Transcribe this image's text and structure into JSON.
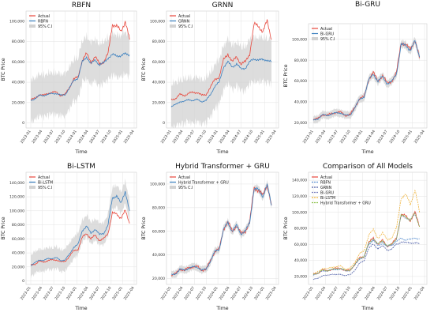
{
  "chart_data": [
    {
      "type": "line",
      "title": "RBFN",
      "xlabel": "Time",
      "ylabel": "BTC Price",
      "x_ticks": [
        "2023-01",
        "2023-04",
        "2023-07",
        "2023-10",
        "2024-01",
        "2024-04",
        "2024-07",
        "2024-10",
        "2025-01",
        "2025-04"
      ],
      "y_ticks": [
        0,
        20000,
        40000,
        60000,
        80000,
        100000
      ],
      "y_tick_labels": [
        "0",
        "20,000",
        "40,000",
        "60,000",
        "80,000",
        "100,000"
      ],
      "ylim": [
        -5000,
        110000
      ],
      "grid": true,
      "legend": "top-left",
      "legend_entries": [
        "Actual",
        "RBFN",
        "95% C.I"
      ],
      "series": [
        {
          "name": "Actual",
          "values": [
            23000,
            24000,
            28000,
            27000,
            29000,
            30000,
            30000,
            27000,
            28000,
            35000,
            43000,
            45000,
            62000,
            68000,
            60000,
            65000,
            58000,
            60000,
            68000,
            97000,
            95000,
            90000,
            100000,
            82000
          ]
        },
        {
          "name": "RBFN",
          "values": [
            22000,
            24000,
            27000,
            27000,
            28000,
            29000,
            29000,
            27000,
            28000,
            34000,
            42000,
            44000,
            60000,
            65000,
            58000,
            62000,
            57000,
            59000,
            64000,
            67000,
            66000,
            66000,
            68000,
            67000
          ]
        }
      ],
      "ci_halfwidth": 17000
    },
    {
      "type": "line",
      "title": "GRNN",
      "xlabel": "Time",
      "ylabel": "BTC Price",
      "x_ticks": [
        "2023-01",
        "2023-04",
        "2023-07",
        "2023-10",
        "2024-01",
        "2024-04",
        "2024-07",
        "2024-10",
        "2025-01",
        "2025-04"
      ],
      "y_ticks": [
        0,
        20000,
        40000,
        60000,
        80000,
        100000
      ],
      "y_tick_labels": [
        "0",
        "20,000",
        "40,000",
        "60,000",
        "80,000",
        "100,000"
      ],
      "ylim": [
        -5000,
        110000
      ],
      "grid": true,
      "legend": "top-left",
      "legend_entries": [
        "Actual",
        "GRNN",
        "95% C.I"
      ],
      "series": [
        {
          "name": "Actual",
          "values": [
            23000,
            24000,
            28000,
            27000,
            29000,
            30000,
            30000,
            27000,
            28000,
            35000,
            43000,
            45000,
            62000,
            68000,
            60000,
            65000,
            58000,
            60000,
            68000,
            97000,
            95000,
            90000,
            100000,
            82000
          ]
        },
        {
          "name": "GRNN",
          "values": [
            16000,
            18000,
            21000,
            21000,
            23000,
            22000,
            23000,
            21000,
            22000,
            28000,
            36000,
            40000,
            55000,
            60000,
            55000,
            58000,
            53000,
            54000,
            60000,
            63000,
            62000,
            62000,
            62000,
            60000
          ]
        }
      ],
      "ci_halfwidth": 18000
    },
    {
      "type": "line",
      "title": "Bi-GRU",
      "xlabel": "Time",
      "ylabel": "BTC Price",
      "x_ticks": [
        "2023-01",
        "2023-04",
        "2023-07",
        "2023-10",
        "2024-01",
        "2024-04",
        "2024-07",
        "2024-10",
        "2025-01",
        "2025-04"
      ],
      "y_ticks": [
        20000,
        40000,
        60000,
        80000,
        100000
      ],
      "y_tick_labels": [
        "20,000",
        "40,000",
        "60,000",
        "80,000",
        "100,000"
      ],
      "ylim": [
        15000,
        115000
      ],
      "grid": true,
      "legend": "top-left",
      "legend_entries": [
        "Actual",
        "Bi-GRU",
        "95% C.I"
      ],
      "series": [
        {
          "name": "Actual",
          "values": [
            23000,
            24000,
            28000,
            27000,
            29000,
            30000,
            30000,
            27000,
            28000,
            35000,
            43000,
            45000,
            62000,
            68000,
            60000,
            65000,
            58000,
            60000,
            68000,
            97000,
            95000,
            90000,
            100000,
            82000
          ]
        },
        {
          "name": "Bi-GRU",
          "values": [
            22500,
            24000,
            27500,
            27000,
            28500,
            29500,
            29500,
            27000,
            27500,
            34500,
            42500,
            45000,
            61000,
            67000,
            59500,
            64500,
            57500,
            59500,
            67000,
            95000,
            94000,
            90000,
            98000,
            83000
          ]
        }
      ],
      "ci_halfwidth": 3000
    },
    {
      "type": "line",
      "title": "Bi-LSTM",
      "xlabel": "Time",
      "ylabel": "BTC Price",
      "x_ticks": [
        "2023-01",
        "2023-04",
        "2023-07",
        "2023-10",
        "2024-01",
        "2024-04",
        "2024-07",
        "2024-10",
        "2025-01",
        "2025-04"
      ],
      "y_ticks": [
        0,
        20000,
        40000,
        60000,
        80000,
        100000,
        120000,
        140000
      ],
      "y_tick_labels": [
        "0",
        "20,000",
        "40,000",
        "60,000",
        "80,000",
        "100,000",
        "120,000",
        "140,000"
      ],
      "ylim": [
        -5000,
        155000
      ],
      "grid": true,
      "legend": "top-left",
      "legend_entries": [
        "Actual",
        "Bi-LSTM",
        "95% C.I"
      ],
      "series": [
        {
          "name": "Actual",
          "values": [
            23000,
            24000,
            28000,
            27000,
            29000,
            30000,
            30000,
            27000,
            28000,
            35000,
            43000,
            45000,
            62000,
            68000,
            60000,
            65000,
            58000,
            60000,
            68000,
            97000,
            95000,
            90000,
            100000,
            82000
          ]
        },
        {
          "name": "Bi-LSTM",
          "values": [
            22000,
            26000,
            30000,
            29000,
            32000,
            32000,
            33000,
            29000,
            30000,
            38000,
            48000,
            52000,
            72000,
            78000,
            68000,
            74000,
            66000,
            68000,
            80000,
            118000,
            122000,
            110000,
            128000,
            100000
          ]
        }
      ],
      "ci_halfwidth": 13000
    },
    {
      "type": "line",
      "title": "Hybrid Transformer + GRU",
      "xlabel": "Time",
      "ylabel": "BTC Price",
      "x_ticks": [
        "2023-01",
        "2023-04",
        "2023-07",
        "2023-10",
        "2024-01",
        "2024-04",
        "2024-07",
        "2024-10",
        "2025-01",
        "2025-04"
      ],
      "y_ticks": [
        20000,
        40000,
        60000,
        80000,
        100000
      ],
      "y_tick_labels": [
        "20,000",
        "40,000",
        "60,000",
        "80,000",
        "100,000"
      ],
      "ylim": [
        15000,
        110000
      ],
      "grid": true,
      "legend": "top-left",
      "legend_entries": [
        "Actual",
        "Hybrid Transformer + GRU",
        "95% C.I"
      ],
      "series": [
        {
          "name": "Actual",
          "values": [
            23000,
            24000,
            28000,
            27000,
            29000,
            30000,
            30000,
            27000,
            28000,
            35000,
            43000,
            45000,
            62000,
            68000,
            60000,
            65000,
            58000,
            60000,
            68000,
            97000,
            95000,
            90000,
            100000,
            82000
          ]
        },
        {
          "name": "Hybrid Transformer + GRU",
          "values": [
            23000,
            24000,
            27800,
            27000,
            28800,
            29800,
            29800,
            27000,
            28000,
            34800,
            42800,
            45000,
            61500,
            67500,
            60000,
            64800,
            58000,
            60000,
            67500,
            96000,
            95000,
            90000,
            99000,
            82000
          ]
        }
      ],
      "ci_halfwidth": 2500
    },
    {
      "type": "line",
      "title": "Comparison of All Models",
      "xlabel": "Time",
      "ylabel": "BTC Price",
      "x_ticks": [
        "2023-01",
        "2023-04",
        "2023-07",
        "2023-10",
        "2024-01",
        "2024-04",
        "2024-07",
        "2024-10",
        "2025-01",
        "2025-04"
      ],
      "y_ticks": [
        20000,
        40000,
        60000,
        80000,
        100000,
        120000,
        140000
      ],
      "y_tick_labels": [
        "20,000",
        "40,000",
        "60,000",
        "80,000",
        "100,000",
        "120,000",
        "140,000"
      ],
      "ylim": [
        10000,
        150000
      ],
      "grid": true,
      "legend": "top-left",
      "legend_entries": [
        "Actual",
        "RBFN",
        "GRNN",
        "Bi-GRU",
        "Bi-LSTM",
        "Hybrid Transformer + GRU"
      ],
      "series": [
        {
          "name": "Actual",
          "values": [
            23000,
            24000,
            28000,
            27000,
            29000,
            30000,
            30000,
            27000,
            28000,
            35000,
            43000,
            45000,
            62000,
            68000,
            60000,
            65000,
            58000,
            60000,
            68000,
            97000,
            95000,
            90000,
            100000,
            82000
          ]
        },
        {
          "name": "RBFN",
          "values": [
            22000,
            24000,
            27000,
            27000,
            28000,
            29000,
            29000,
            27000,
            28000,
            34000,
            42000,
            44000,
            60000,
            65000,
            58000,
            62000,
            57000,
            59000,
            64000,
            67000,
            66000,
            66000,
            68000,
            67000
          ]
        },
        {
          "name": "GRNN",
          "values": [
            16000,
            18000,
            21000,
            21000,
            23000,
            22000,
            23000,
            21000,
            22000,
            28000,
            36000,
            40000,
            55000,
            60000,
            55000,
            58000,
            53000,
            54000,
            60000,
            63000,
            62000,
            62000,
            62000,
            60000
          ]
        },
        {
          "name": "Bi-GRU",
          "values": [
            22500,
            24000,
            27500,
            27000,
            28500,
            29500,
            29500,
            27000,
            27500,
            34500,
            42500,
            45000,
            61000,
            67000,
            59500,
            64500,
            57500,
            59500,
            67000,
            95000,
            94000,
            90000,
            98000,
            83000
          ]
        },
        {
          "name": "Bi-LSTM",
          "values": [
            22000,
            26000,
            30000,
            29000,
            32000,
            32000,
            33000,
            29000,
            30000,
            38000,
            48000,
            52000,
            72000,
            78000,
            68000,
            74000,
            66000,
            68000,
            80000,
            118000,
            122000,
            110000,
            128000,
            100000
          ]
        },
        {
          "name": "Hybrid Transformer + GRU",
          "values": [
            23000,
            24000,
            27800,
            27000,
            28800,
            29800,
            29800,
            27000,
            28000,
            34800,
            42800,
            45000,
            61500,
            67500,
            60000,
            64800,
            58000,
            60000,
            67500,
            96000,
            95000,
            90000,
            99000,
            82000
          ]
        }
      ]
    }
  ],
  "colors": {
    "Actual": "#e8473c",
    "model": "#3a7fbf",
    "ci": "#d2d2d2",
    "RBFN": "#5a8fd0",
    "GRNN": "#4f5fa8",
    "Bi-GRU": "#7a7fbf",
    "Bi-LSTM": "#f0b33a",
    "Hybrid Transformer + GRU": "#8cc24a"
  }
}
